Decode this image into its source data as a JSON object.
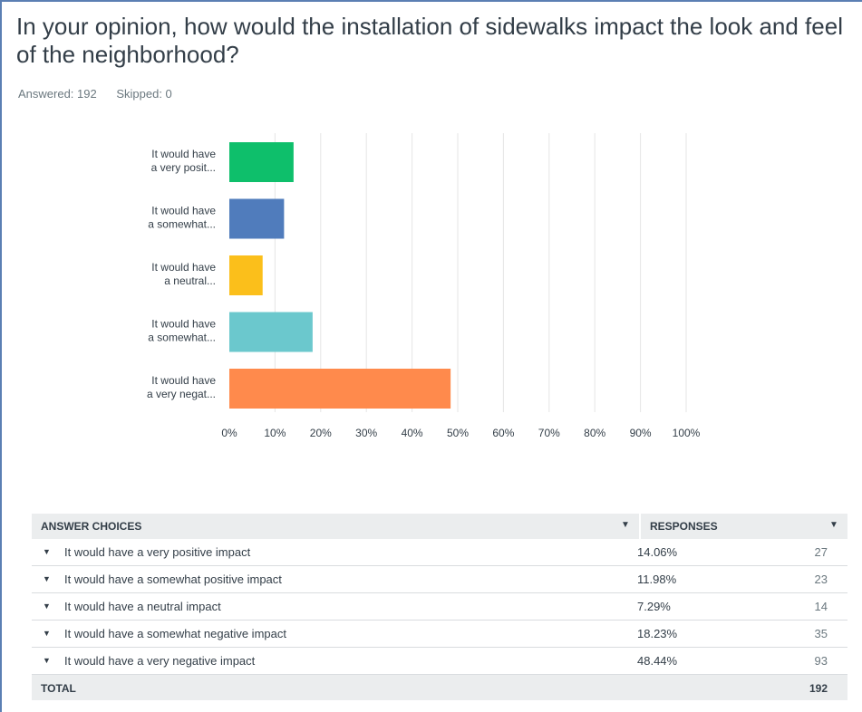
{
  "question": {
    "title": "In your opinion, how would the installation of sidewalks impact the look and feel of the neighborhood?",
    "answered": "Answered: 192",
    "skipped": "Skipped: 0"
  },
  "chart_data": {
    "type": "bar",
    "orientation": "horizontal",
    "categories": [
      [
        "It would have",
        "a very posit..."
      ],
      [
        "It would have",
        "a somewhat..."
      ],
      [
        "It would have",
        "a neutral..."
      ],
      [
        "It would have",
        "a somewhat..."
      ],
      [
        "It would have",
        "a very negat..."
      ]
    ],
    "values": [
      14.06,
      11.98,
      7.29,
      18.23,
      48.44
    ],
    "colors": [
      "#0ebf6b",
      "#507cbc",
      "#fbbf1b",
      "#6bc8cd",
      "#ff8a4c"
    ],
    "xlim": [
      0,
      100
    ],
    "xticks": [
      "0%",
      "10%",
      "20%",
      "30%",
      "40%",
      "50%",
      "60%",
      "70%",
      "80%",
      "90%",
      "100%"
    ],
    "grid": true
  },
  "table": {
    "header_choices": "ANSWER CHOICES",
    "header_responses": "RESPONSES",
    "rows": [
      {
        "label": "It would have a very positive impact",
        "pct": "14.06%",
        "count": "27"
      },
      {
        "label": "It would have a somewhat positive impact",
        "pct": "11.98%",
        "count": "23"
      },
      {
        "label": "It would have a neutral impact",
        "pct": "7.29%",
        "count": "14"
      },
      {
        "label": "It would have a somewhat negative impact",
        "pct": "18.23%",
        "count": "35"
      },
      {
        "label": "It would have a very negative impact",
        "pct": "48.44%",
        "count": "93"
      }
    ],
    "total_label": "TOTAL",
    "total_value": "192"
  }
}
